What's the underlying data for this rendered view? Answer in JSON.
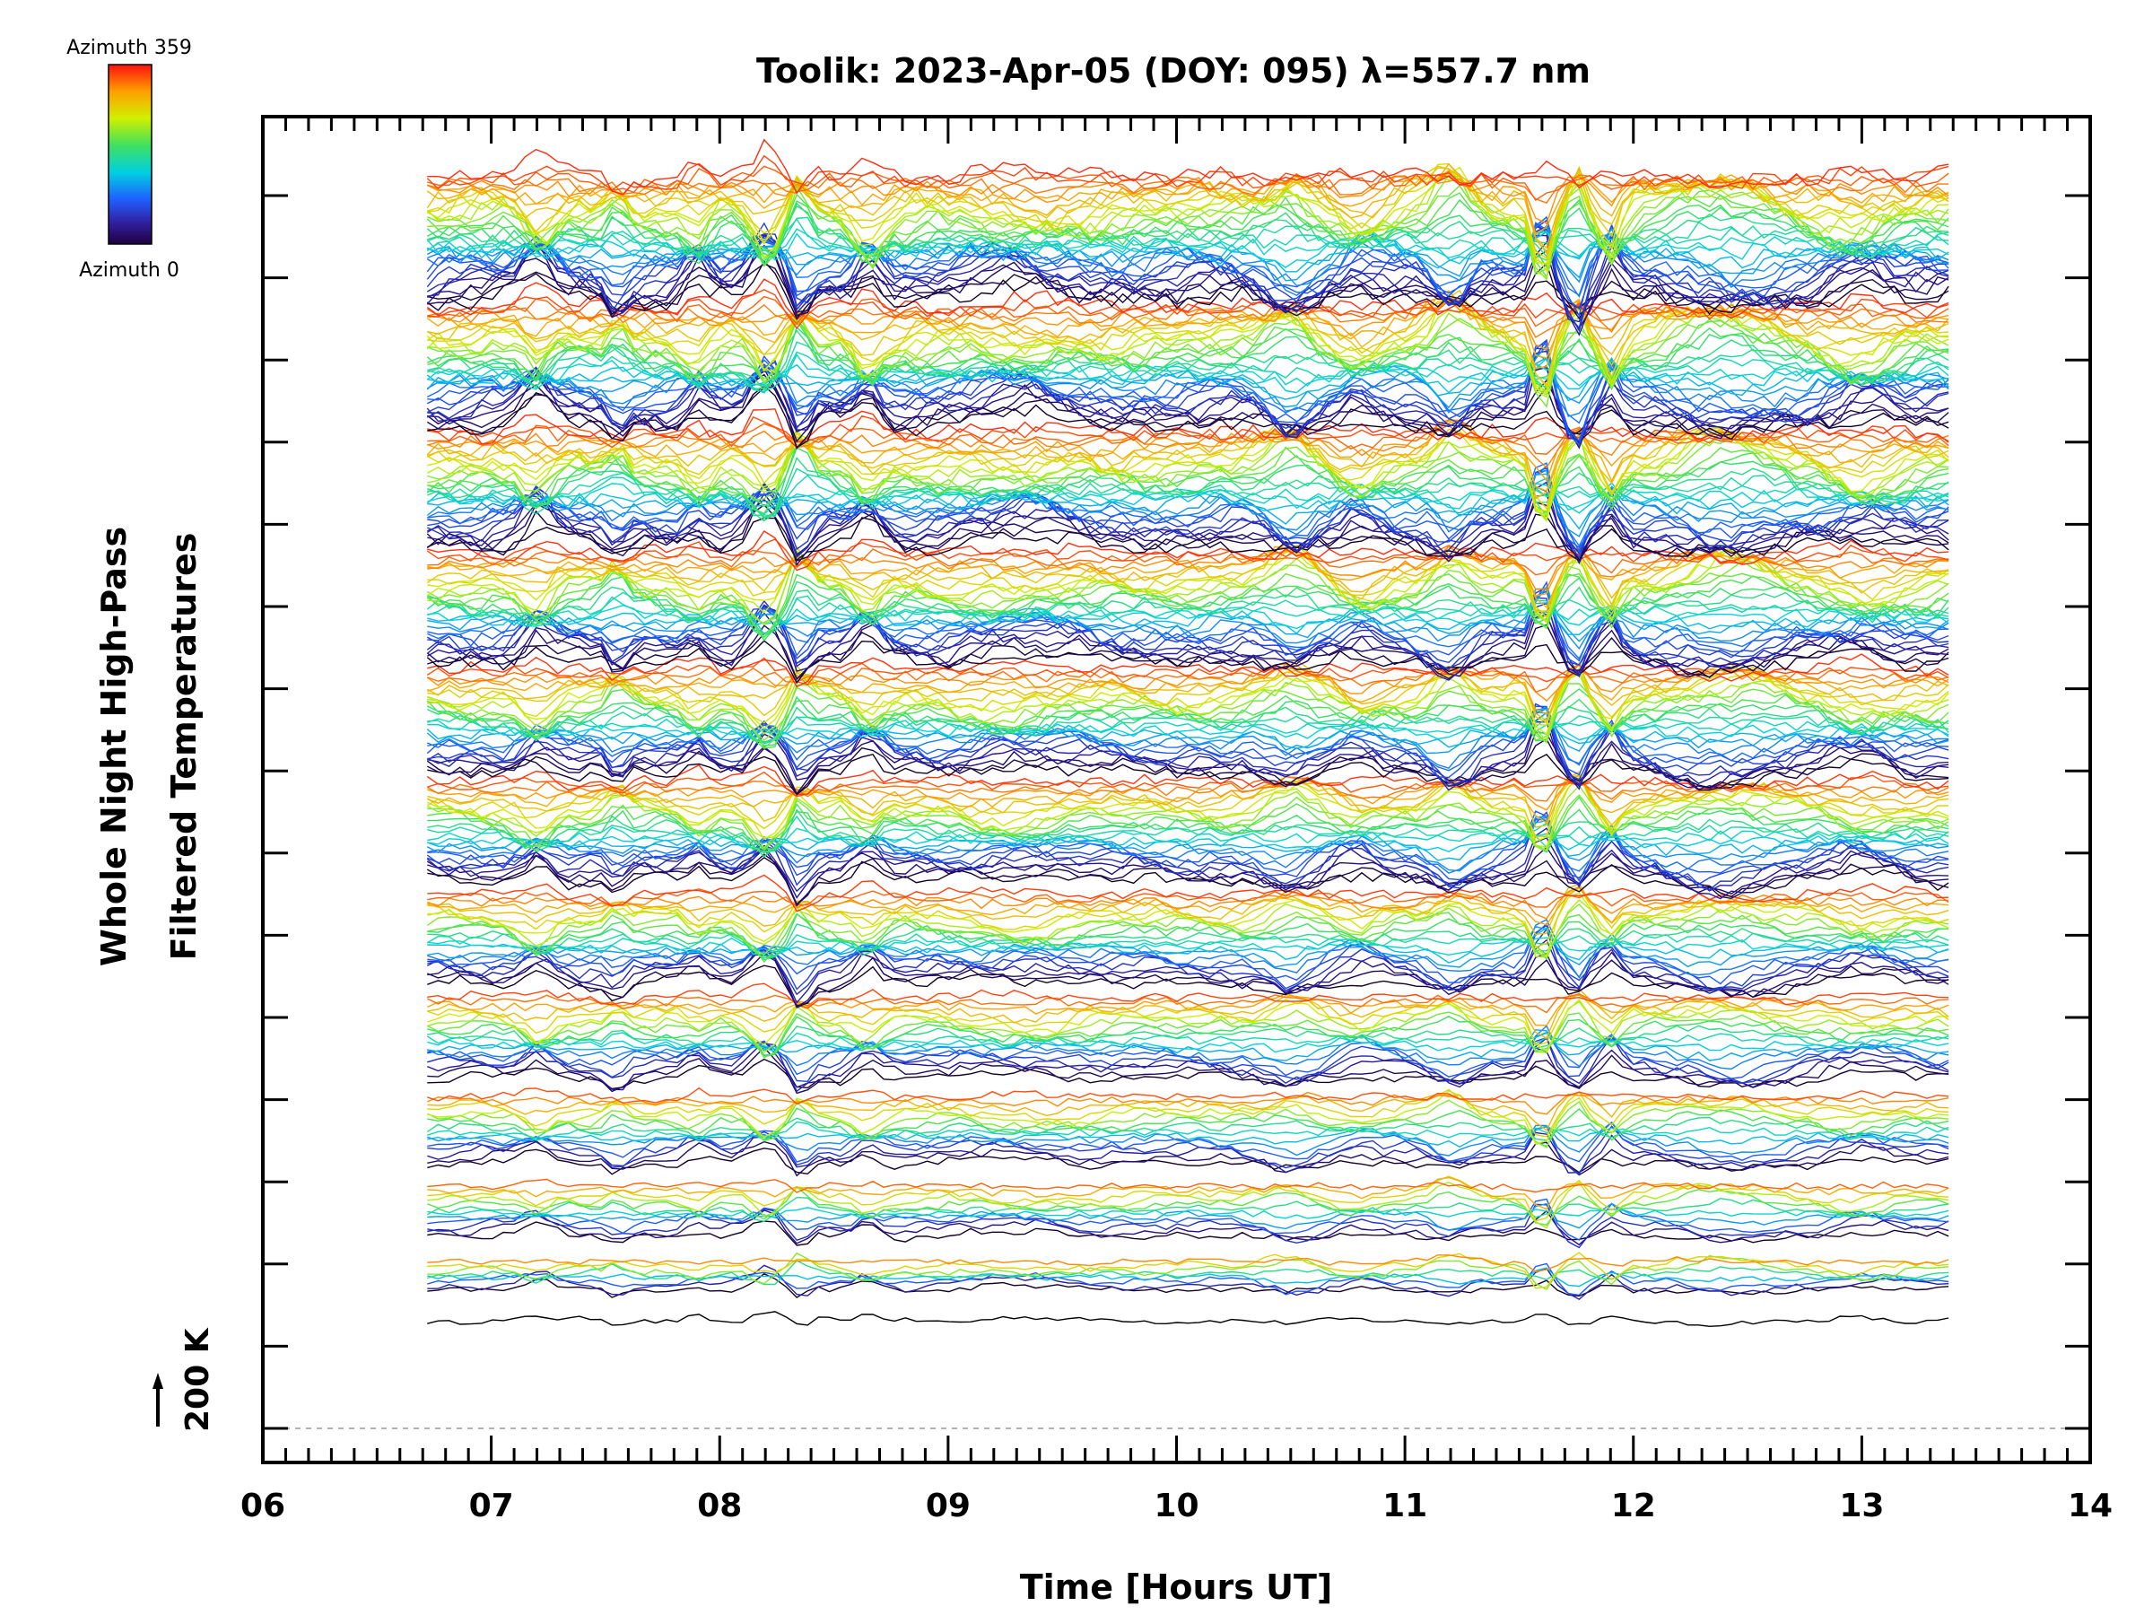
{
  "chart_data": {
    "type": "line",
    "title": "Toolik: 2023-Apr-05 (DOY: 095) λ=557.7 nm",
    "xlabel": "Time [Hours UT]",
    "ylabel_line1": "Whole Night High-Pass",
    "ylabel_line2": "Filtered Temperatures",
    "xlim": [
      6,
      14
    ],
    "x_ticks": [
      "06",
      "07",
      "08",
      "09",
      "10",
      "11",
      "12",
      "13",
      "14"
    ],
    "data_time_range": [
      6.72,
      13.38
    ],
    "scale_label": "200 K",
    "colorbar": {
      "top_label": "Azimuth 359",
      "bottom_label": "Azimuth 0",
      "colormap": "rainbow",
      "min": 0,
      "max": 359
    },
    "stack_rings": 12,
    "description_series": "Stacked high-pass filtered temperature traces, one per azimuth per zenith ring, colored by azimuth (0 = purple/black, 359 = red)"
  }
}
